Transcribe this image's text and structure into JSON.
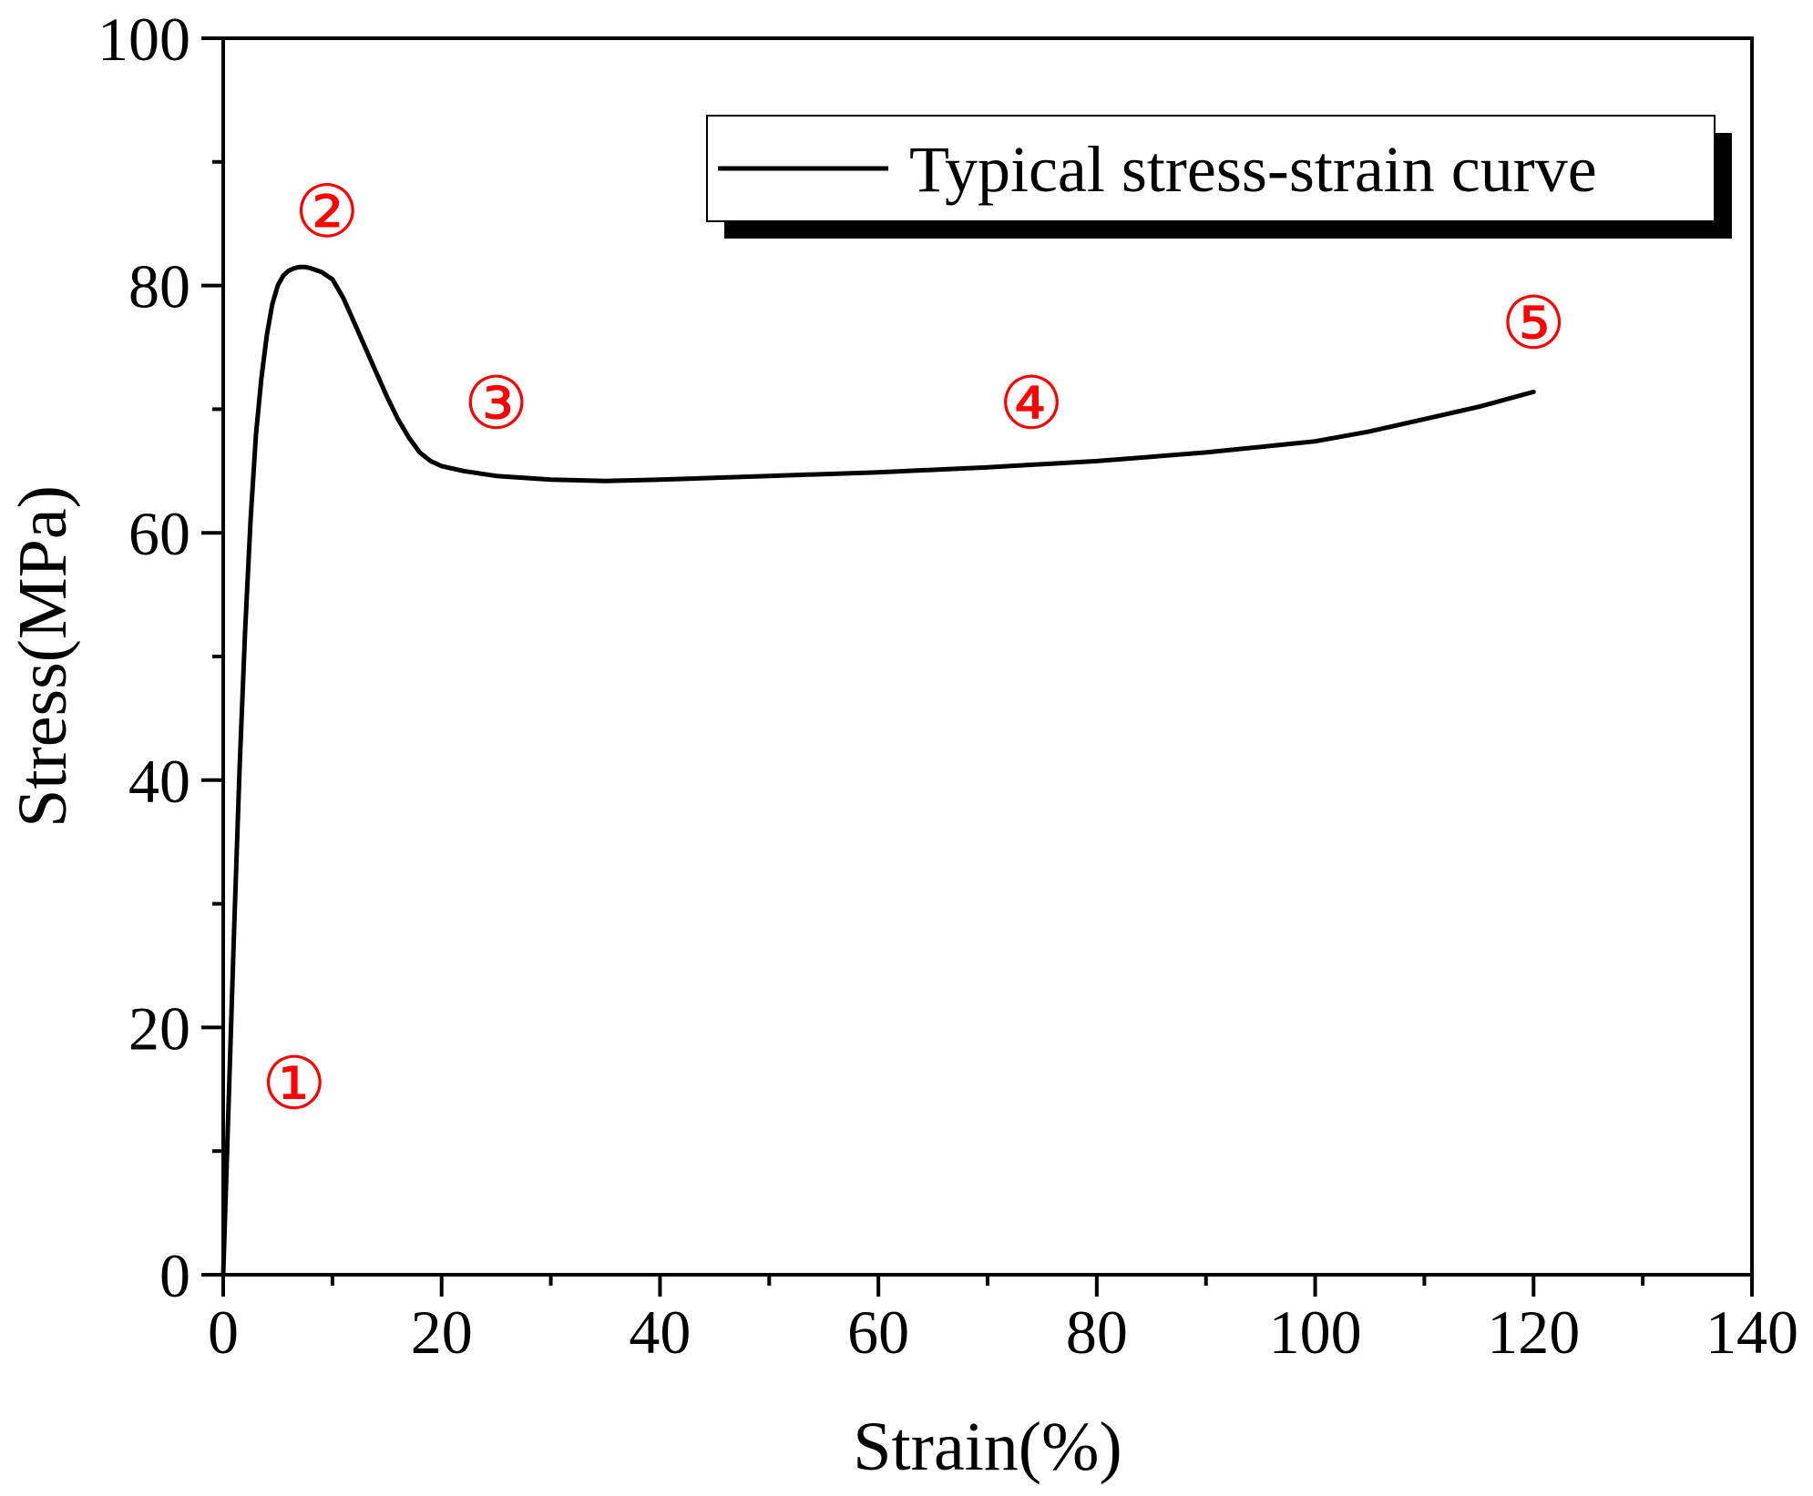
{
  "chart_data": {
    "type": "line",
    "title": "",
    "xlabel": "Strain(%)",
    "ylabel": "Stress(MPa)",
    "xlim": [
      0,
      140
    ],
    "ylim": [
      0,
      100
    ],
    "xticks": [
      0,
      20,
      40,
      60,
      80,
      100,
      120,
      140
    ],
    "yticks": [
      0,
      20,
      40,
      60,
      80,
      100
    ],
    "grid": false,
    "legend_position": "top-right",
    "series": [
      {
        "name": "Typical stress-strain curve",
        "color": "#000000",
        "x": [
          0,
          0.5,
          1,
          1.5,
          2,
          2.5,
          3,
          3.5,
          4,
          4.5,
          5,
          5.5,
          6,
          6.5,
          7,
          7.5,
          8,
          9,
          10,
          11,
          12,
          13,
          14,
          15,
          16,
          17,
          18,
          19,
          20,
          22,
          25,
          30,
          35,
          40,
          50,
          60,
          70,
          80,
          90,
          100,
          105,
          110,
          115,
          120
        ],
        "y": [
          0,
          14,
          28,
          41,
          52,
          61,
          68,
          72.5,
          76,
          78.5,
          80,
          80.8,
          81.2,
          81.4,
          81.5,
          81.5,
          81.4,
          81.1,
          80.5,
          79,
          77,
          75,
          73,
          71,
          69.2,
          67.7,
          66.5,
          65.8,
          65.4,
          65.0,
          64.6,
          64.3,
          64.2,
          64.3,
          64.6,
          64.9,
          65.3,
          65.8,
          66.5,
          67.4,
          68.2,
          69.2,
          70.2,
          71.4
        ]
      }
    ],
    "annotations": [
      {
        "label": "①",
        "x": 6.5,
        "y": 15.5
      },
      {
        "label": "②",
        "x": 9.5,
        "y": 86
      },
      {
        "label": "③",
        "x": 25,
        "y": 70.5
      },
      {
        "label": "④",
        "x": 74,
        "y": 70.5
      },
      {
        "label": "⑤",
        "x": 120,
        "y": 77
      }
    ]
  }
}
